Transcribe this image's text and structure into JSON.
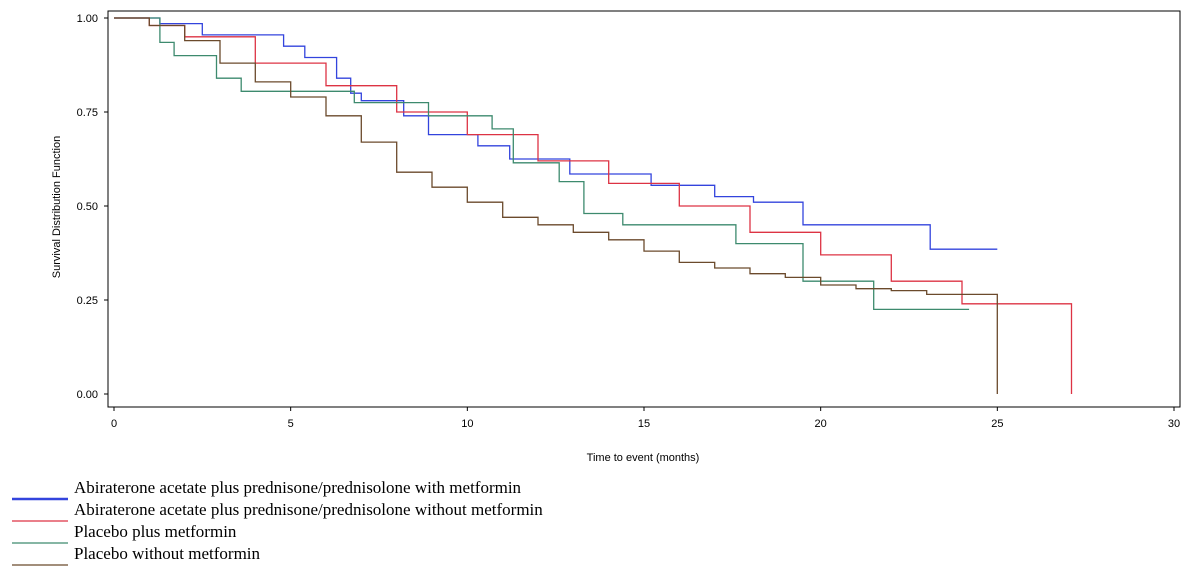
{
  "chart_data": {
    "type": "line",
    "title": "",
    "xlabel": "Time to event (months)",
    "ylabel": "Survival Distribution Function",
    "xlim": [
      0,
      30
    ],
    "ylim": [
      0,
      1
    ],
    "x_ticks": [
      "0",
      "5",
      "10",
      "15",
      "20",
      "25",
      "30"
    ],
    "y_ticks": [
      "0.00",
      "0.25",
      "0.50",
      "0.75",
      "1.00"
    ],
    "grid": false,
    "legend_position": "bottom-left",
    "series": [
      {
        "name": "Abiraterone acetate plus prednisone/prednisolone with metformin",
        "color": "#3344dd",
        "step": true,
        "x": [
          0,
          1.3,
          2.5,
          4.8,
          5.4,
          6.3,
          6.7,
          7.0,
          8.2,
          8.9,
          10.3,
          11.2,
          12.9,
          15.2,
          17.0,
          18.1,
          19.5,
          23.1,
          25.0
        ],
        "y": [
          1.0,
          0.985,
          0.955,
          0.925,
          0.895,
          0.84,
          0.8,
          0.78,
          0.74,
          0.69,
          0.66,
          0.625,
          0.585,
          0.555,
          0.525,
          0.51,
          0.45,
          0.385,
          0.385
        ]
      },
      {
        "name": "Abiraterone acetate plus prednisone/prednisolone without metformin",
        "color": "#dd3344",
        "step": true,
        "x": [
          0,
          1,
          2,
          4,
          6,
          8,
          10,
          12,
          14,
          16,
          18,
          20,
          22,
          24,
          27.1,
          27.1
        ],
        "y": [
          1.0,
          0.98,
          0.95,
          0.88,
          0.82,
          0.75,
          0.69,
          0.62,
          0.56,
          0.5,
          0.43,
          0.37,
          0.3,
          0.24,
          0.215,
          0.0
        ]
      },
      {
        "name": "Placebo plus metformin",
        "color": "#3d8a6e",
        "step": true,
        "x": [
          0,
          1.3,
          1.7,
          2.9,
          3.6,
          6.8,
          8.9,
          10.7,
          11.3,
          12.6,
          13.3,
          14.4,
          17.6,
          19.5,
          21.5,
          24.2
        ],
        "y": [
          1.0,
          0.935,
          0.9,
          0.84,
          0.805,
          0.775,
          0.74,
          0.705,
          0.615,
          0.565,
          0.48,
          0.45,
          0.4,
          0.3,
          0.225,
          0.225
        ]
      },
      {
        "name": "Placebo without metformin",
        "color": "#6b4a2c",
        "step": true,
        "x": [
          0,
          1,
          2,
          3,
          4,
          5,
          6,
          7,
          8,
          9,
          10,
          11,
          12,
          13,
          14,
          15,
          16,
          17,
          18,
          19,
          20,
          21,
          22,
          23,
          25.0,
          25.0
        ],
        "y": [
          1.0,
          0.98,
          0.94,
          0.88,
          0.83,
          0.79,
          0.74,
          0.67,
          0.59,
          0.55,
          0.51,
          0.47,
          0.45,
          0.43,
          0.41,
          0.38,
          0.35,
          0.335,
          0.32,
          0.31,
          0.29,
          0.28,
          0.275,
          0.265,
          0.265,
          0.0
        ]
      }
    ]
  }
}
